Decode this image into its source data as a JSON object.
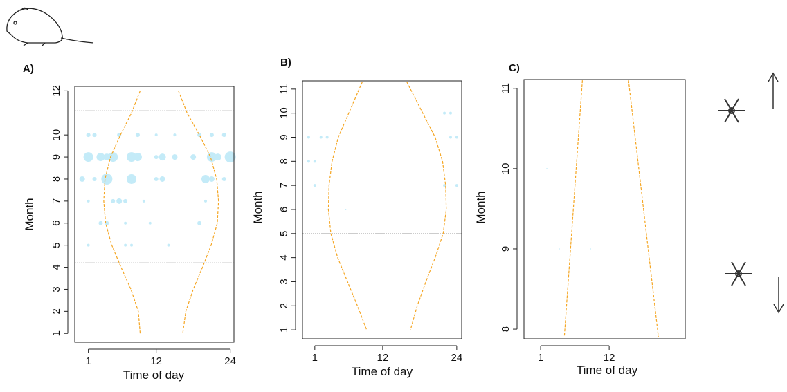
{
  "chart_data": [
    {
      "type": "scatter",
      "label": "A)",
      "xlabel": "Time of day",
      "ylabel": "Month",
      "xlim": [
        -1.2,
        24.6
      ],
      "ylim": [
        0.6,
        12.2
      ],
      "xticks": [
        1,
        12,
        24
      ],
      "yticks": [
        1,
        2,
        3,
        4,
        5,
        6,
        7,
        8,
        9,
        10,
        12
      ],
      "hlines": [
        11.1,
        4.2
      ],
      "hline_color": "#bbbbbb",
      "points": {
        "color": "#c4ebf8",
        "x": [
          1,
          3,
          4,
          5,
          8,
          9,
          12,
          13,
          15,
          18,
          21,
          22,
          24,
          0,
          2,
          4,
          8,
          12,
          13,
          20,
          21,
          23,
          1,
          2,
          6,
          9,
          12,
          15,
          19,
          21,
          23,
          1,
          5,
          6,
          7,
          10,
          20,
          3,
          4,
          7,
          11,
          19,
          1,
          7,
          8,
          14
        ],
        "y": [
          9,
          9,
          9,
          9,
          9,
          9,
          9,
          9,
          9,
          9,
          9,
          9,
          9,
          8,
          8,
          8,
          8,
          8,
          8,
          8,
          8,
          8,
          10,
          10,
          10,
          10,
          10,
          10,
          10,
          10,
          10,
          7,
          7,
          7,
          7,
          7,
          7,
          6,
          6,
          6,
          6,
          6,
          5,
          5,
          5,
          5
        ],
        "size": [
          7,
          6,
          5,
          7,
          7,
          6,
          3,
          5,
          4,
          4,
          7,
          5,
          8,
          4,
          3,
          8,
          7,
          3,
          4,
          6,
          4,
          3,
          3,
          3,
          3,
          3,
          2,
          2,
          3,
          3,
          3,
          2,
          3,
          4,
          3,
          2,
          2,
          3,
          3,
          2,
          2,
          3,
          2,
          2,
          2,
          2
        ]
      },
      "lines": [
        {
          "color": "#f5a623",
          "x": [
            9.4,
            8.0,
            6.2,
            4.6,
            3.7,
            3.5,
            3.8,
            4.8,
            6.3,
            7.9,
            9.1,
            9.4
          ],
          "y": [
            12,
            11,
            10,
            9,
            8,
            7,
            6,
            5,
            4,
            3,
            2,
            1
          ]
        },
        {
          "color": "#f5a623",
          "x": [
            15.6,
            17,
            19,
            20.8,
            21.8,
            22.1,
            21.9,
            20.9,
            19.5,
            18,
            16.8,
            16.3
          ],
          "y": [
            12,
            11,
            10,
            9,
            8,
            7,
            6,
            5,
            4,
            3,
            2,
            1
          ]
        }
      ]
    },
    {
      "type": "scatter",
      "label": "B)",
      "xlabel": "Time of day",
      "ylabel": "Month",
      "xlim": [
        -1.0,
        24.8
      ],
      "ylim": [
        0.63,
        11.34
      ],
      "xticks": [
        1,
        12,
        24
      ],
      "yticks": [
        1,
        2,
        3,
        4,
        5,
        6,
        7,
        8,
        9,
        10,
        11
      ],
      "hlines": [
        5
      ],
      "hline_color": "#bbbbbb",
      "points": {
        "color": "#c4ebf8",
        "x": [
          0,
          2,
          3,
          23,
          24,
          0,
          1,
          22,
          23,
          1,
          22,
          24,
          3,
          6
        ],
        "y": [
          9,
          9,
          9,
          9,
          9,
          8,
          8,
          10,
          10,
          7,
          7,
          7,
          6,
          6
        ],
        "size": [
          2,
          2,
          2,
          2,
          2,
          2,
          2,
          2,
          2,
          2,
          2,
          2,
          1,
          1
        ]
      },
      "lines": [
        {
          "color": "#f5a623",
          "x": [
            8.7,
            6.5,
            4.8,
            3.8,
            3.3,
            3.2,
            3.6,
            4.7,
            6.3,
            7.9,
            9.4
          ],
          "y": [
            11.3,
            10,
            9,
            8,
            7,
            6,
            5,
            4,
            3,
            2,
            1
          ]
        },
        {
          "color": "#f5a623",
          "x": [
            15.9,
            18.5,
            20.5,
            21.7,
            22.2,
            22.3,
            21.8,
            20.5,
            19,
            17.6,
            16.5
          ],
          "y": [
            11.3,
            10,
            9,
            8,
            7,
            6,
            5,
            4,
            3,
            2,
            1
          ]
        }
      ]
    },
    {
      "type": "scatter",
      "label": "C)",
      "xlabel": "Time of day",
      "ylabel": "Month",
      "xlim": [
        -1.67,
        24.2
      ],
      "ylim": [
        7.88,
        11.11
      ],
      "xticks": [
        1,
        12
      ],
      "yticks": [
        8,
        9,
        10,
        11
      ],
      "hlines": [],
      "hline_color": "#bbbbbb",
      "points": {
        "color": "#d6f1fa",
        "x": [
          2,
          4,
          9
        ],
        "y": [
          10,
          9,
          9
        ],
        "size": [
          1,
          1,
          1
        ]
      },
      "lines": [
        {
          "color": "#f5a623",
          "x": [
            7.7,
            4.8
          ],
          "y": [
            11.1,
            7.9
          ]
        },
        {
          "color": "#f5a623",
          "x": [
            15.1,
            19.9
          ],
          "y": [
            11.1,
            7.9
          ]
        }
      ]
    }
  ]
}
